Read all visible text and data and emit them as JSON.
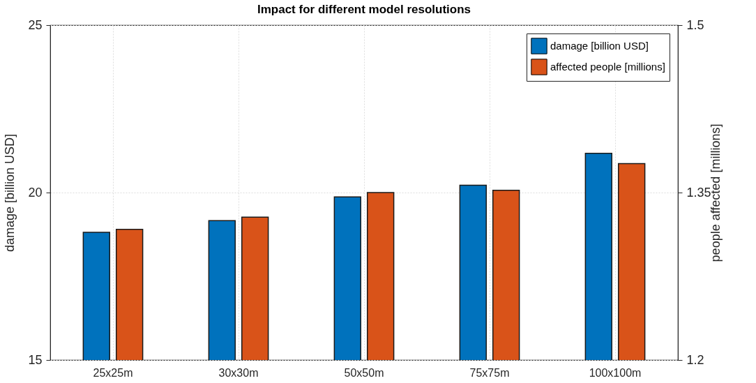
{
  "chart_data": {
    "type": "bar",
    "title": "Impact for different model resolutions",
    "categories": [
      "25x25m",
      "30x30m",
      "50x50m",
      "75x75m",
      "100x100m"
    ],
    "series": [
      {
        "name": "damage [billion USD]",
        "color": "#0072bd",
        "values": [
          18.81,
          19.16,
          19.87,
          20.22,
          21.17
        ]
      },
      {
        "name": "affected people [millions]",
        "color": "#d95319",
        "axis": "y2",
        "values": [
          1.317,
          1.328,
          1.35,
          1.352,
          1.376
        ]
      }
    ],
    "ylabel": "damage [billion USD]",
    "y2label": "people affected [millions]",
    "ylim": [
      15,
      25
    ],
    "yticks": [
      15,
      20,
      25
    ],
    "y2lim": [
      1.2,
      1.5
    ],
    "y2ticks": [
      1.2,
      {
        "value": 1.35,
        "label": "1.35"
      },
      1.5
    ],
    "grid": true,
    "legend": "top right"
  }
}
